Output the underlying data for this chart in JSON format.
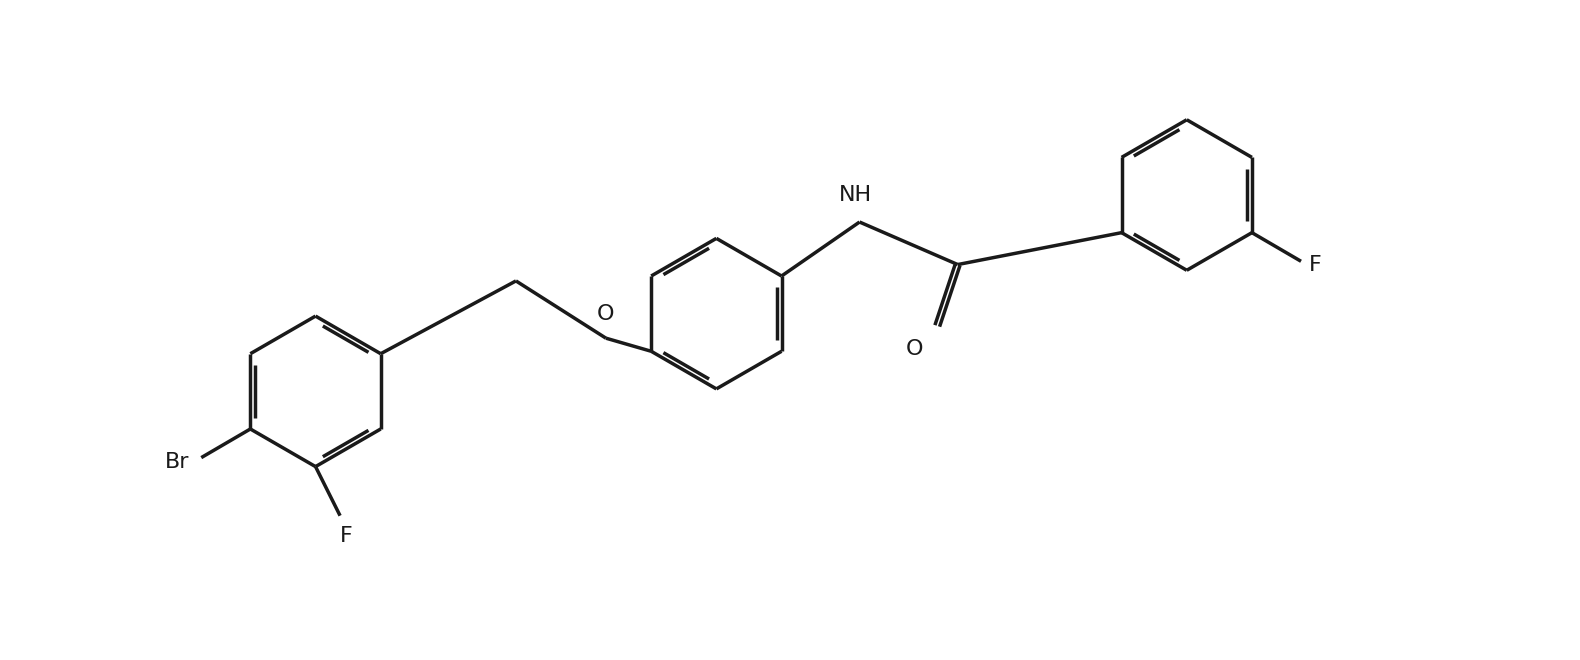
{
  "background_color": "#ffffff",
  "line_color": "#1a1a1a",
  "line_width": 2.5,
  "dbo": 0.06,
  "label_fontsize": 16,
  "figsize": [
    15.8,
    6.6
  ],
  "dpi": 100,
  "xlim": [
    -1,
    17
  ],
  "ylim": [
    -0.5,
    7.5
  ]
}
